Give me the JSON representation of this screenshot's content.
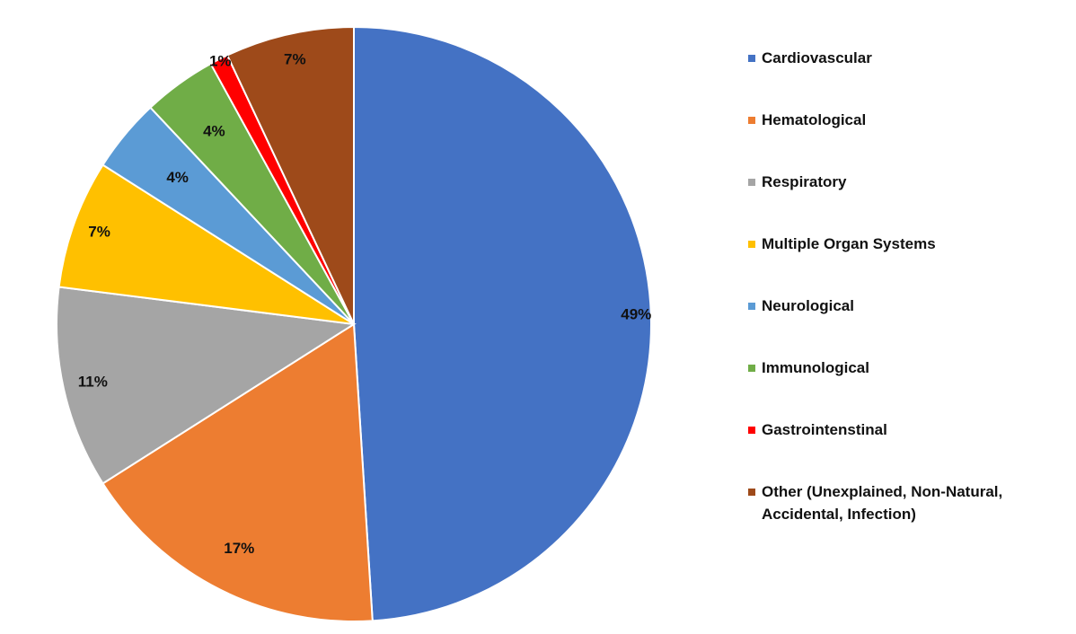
{
  "chart_data": {
    "type": "pie",
    "legend_position": "right",
    "slices": [
      {
        "label": "Cardiovascular",
        "value": 49,
        "value_label": "49%",
        "color": "#4472C4"
      },
      {
        "label": "Hematological",
        "value": 17,
        "value_label": "17%",
        "color": "#ED7D31"
      },
      {
        "label": "Respiratory",
        "value": 11,
        "value_label": "11%",
        "color": "#A5A5A5"
      },
      {
        "label": "Multiple Organ Systems",
        "value": 7,
        "value_label": "7%",
        "color": "#FFC000"
      },
      {
        "label": "Neurological",
        "value": 4,
        "value_label": "4%",
        "color": "#5B9BD5"
      },
      {
        "label": "Immunological",
        "value": 4,
        "value_label": "4%",
        "color": "#70AD47"
      },
      {
        "label": "Gastrointenstinal",
        "value": 1,
        "value_label": "1%",
        "color": "#FF0000"
      },
      {
        "label": "Other (Unexplained, Non-Natural, Accidental, Infection)",
        "value": 7,
        "value_label": "7%",
        "color": "#9E4A1A"
      }
    ]
  }
}
